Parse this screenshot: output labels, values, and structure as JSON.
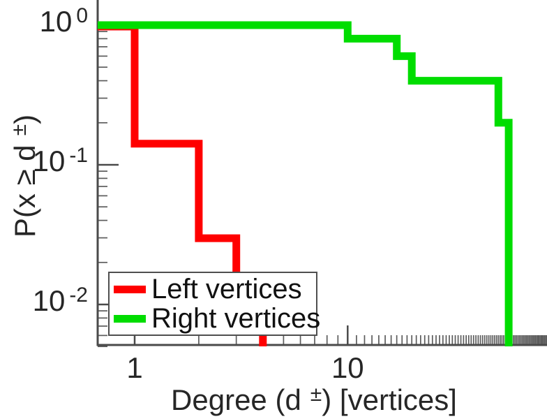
{
  "chart_data": {
    "type": "line",
    "style": "ccdf-step-plot, log-log axes, no grid",
    "title": "",
    "xlabel": {
      "prefix": "Degree (d",
      "sup": "±",
      "suffix": ") [vertices]"
    },
    "ylabel": {
      "prefix": "P(x ≥ d",
      "sup": "±",
      "suffix": ")"
    },
    "x_axis": {
      "scale": "log",
      "range": [
        0.67,
        86
      ],
      "major_ticks": [
        {
          "value": 1,
          "label": "1"
        },
        {
          "value": 10,
          "label": "10"
        }
      ],
      "minor_ticks": {
        "type": "integers",
        "from": 2,
        "to": 86
      }
    },
    "y_axis": {
      "scale": "log",
      "range": [
        0.0047,
        1.5
      ],
      "major_ticks": [
        {
          "value": 1,
          "base": "10",
          "exp": "0"
        },
        {
          "value": 0.1,
          "base": "10",
          "exp": "-1"
        },
        {
          "value": 0.01,
          "base": "10",
          "exp": "-2"
        }
      ],
      "minor_ticks": {
        "type": "log-2-to-9-per-decade",
        "min": 0.005
      }
    },
    "series": [
      {
        "name": "Left vertices",
        "color": "#ff0000",
        "start_p": 1.0,
        "steps": [
          [
            1,
            0.145
          ],
          [
            2,
            0.0305
          ],
          [
            3,
            0.0076
          ],
          [
            4,
            0
          ]
        ]
      },
      {
        "name": "Right vertices",
        "color": "#00dd00",
        "start_p": 1.0,
        "steps": [
          [
            10,
            0.8
          ],
          [
            17,
            0.6
          ],
          [
            20,
            0.4
          ],
          [
            51,
            0.2
          ],
          [
            57,
            0
          ]
        ]
      }
    ],
    "legend": {
      "position": "bottom-left",
      "entries": [
        {
          "label": "Left vertices",
          "color": "#ff0000"
        },
        {
          "label": "Right vertices",
          "color": "#00dd00"
        }
      ]
    }
  },
  "colors": {
    "background": "#ffffff",
    "axis": "#4a4a4a",
    "tick": "#5c5c5c",
    "text": "#262626",
    "legend_border": "#4f4f4f",
    "legend_background": "#ffffff",
    "series_left": "#ff0000",
    "series_right": "#00dd00"
  }
}
